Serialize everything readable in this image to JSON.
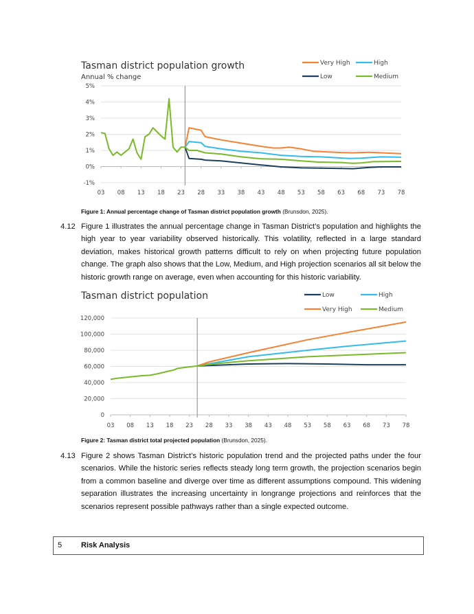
{
  "figure1": {
    "caption_bold": "Figure 1: Annual percentage change of Tasman district population growth",
    "caption_rest": " (Brunsdon, 2025)."
  },
  "figure2": {
    "caption_bold": "Figure 2: Tasman district total projected population",
    "caption_rest": " (Brunsdon, 2025)."
  },
  "paragraphs": [
    {
      "number": "4.12",
      "text": "Figure 1 illustrates the annual percentage change in Tasman District’s population and highlights the high year to year variability observed historically. This volatility, reflected in a large standard deviation, makes historical growth patterns difficult to rely on when projecting future population change. The graph also shows that the Low, Medium, and High projection scenarios all sit below the historic growth range on average, even when accounting for this historic variability."
    },
    {
      "number": "4.13",
      "text": "Figure 2 shows Tasman District’s historic population trend and the projected paths under the four scenarios. While the historic series reflects steady long term growth, the projection scenarios begin from a common baseline and diverge over time as different assumptions compound. This widening separation illustrates the increasing uncertainty in longrange projections and reinforces that the scenarios represent possible pathways rather than a single expected outcome."
    }
  ],
  "section": {
    "number": "5",
    "title": "Risk Analysis"
  },
  "colors": {
    "very_high": "#f58232",
    "high": "#33bbee",
    "medium": "#7ab929",
    "low": "#1d3f5e"
  },
  "chart_data": [
    {
      "type": "line",
      "title": "Tasman district population growth",
      "ylabel": "Annual % change",
      "xlabel": "",
      "xlim": [
        3,
        78
      ],
      "ylim": [
        -1,
        5
      ],
      "x_ticks": [
        "03",
        "08",
        "13",
        "18",
        "23",
        "28",
        "33",
        "38",
        "43",
        "48",
        "53",
        "58",
        "63",
        "68",
        "73",
        "78"
      ],
      "y_ticks": [
        "5%",
        "4%",
        "3%",
        "2%",
        "1%",
        "0%",
        "-1%"
      ],
      "y_tick_values": [
        5,
        4,
        3,
        2,
        1,
        0,
        -1
      ],
      "projection_start": 24,
      "grid": true,
      "legend": [
        "Very High",
        "High",
        "Low",
        "Medium"
      ],
      "legend_position": "top-right",
      "series": [
        {
          "name": "Very High",
          "color": "#f58232",
          "x": [
            24,
            25,
            28,
            29,
            33,
            38,
            43,
            46,
            48,
            50,
            53,
            56,
            63,
            66,
            70,
            78
          ],
          "y": [
            1.2,
            2.4,
            2.25,
            1.85,
            1.65,
            1.45,
            1.25,
            1.15,
            1.15,
            1.2,
            1.1,
            0.95,
            0.87,
            0.85,
            0.88,
            0.8
          ]
        },
        {
          "name": "High",
          "color": "#33bbee",
          "x": [
            24,
            25,
            28,
            29,
            33,
            38,
            43,
            48,
            53,
            58,
            65,
            68,
            73,
            78
          ],
          "y": [
            1.2,
            1.55,
            1.48,
            1.25,
            1.1,
            0.95,
            0.85,
            0.7,
            0.63,
            0.6,
            0.5,
            0.52,
            0.6,
            0.58
          ]
        },
        {
          "name": "Low",
          "color": "#1d3f5e",
          "x": [
            24,
            25,
            28,
            29,
            33,
            38,
            43,
            48,
            53,
            63,
            66,
            70,
            73,
            78
          ],
          "y": [
            1.2,
            0.5,
            0.45,
            0.4,
            0.35,
            0.22,
            0.1,
            -0.02,
            -0.08,
            -0.12,
            -0.13,
            -0.05,
            -0.02,
            -0.02
          ]
        },
        {
          "name": "Medium",
          "color": "#7ab929",
          "x": [
            3,
            4,
            5,
            6,
            7,
            8,
            9,
            10,
            11,
            12,
            13,
            14,
            15,
            16,
            17,
            18,
            19,
            20,
            21,
            22,
            23,
            24,
            25,
            27,
            29,
            33,
            38,
            43,
            48,
            53,
            57,
            63,
            66,
            68,
            71,
            78
          ],
          "y": [
            2.1,
            2.05,
            1.1,
            0.7,
            0.9,
            0.7,
            0.9,
            1.1,
            1.7,
            0.85,
            0.45,
            1.85,
            2.0,
            2.4,
            2.15,
            1.9,
            1.7,
            4.2,
            1.2,
            0.9,
            1.2,
            1.2,
            1.0,
            1.0,
            0.85,
            0.78,
            0.6,
            0.48,
            0.45,
            0.35,
            0.28,
            0.25,
            0.2,
            0.22,
            0.3,
            0.32
          ]
        }
      ]
    },
    {
      "type": "line",
      "title": "Tasman district population",
      "xlabel": "",
      "ylabel": "",
      "xlim": [
        3,
        78
      ],
      "ylim": [
        0,
        120000
      ],
      "x_ticks": [
        "03",
        "08",
        "13",
        "18",
        "23",
        "28",
        "33",
        "38",
        "43",
        "48",
        "53",
        "58",
        "63",
        "68",
        "73",
        "78"
      ],
      "y_ticks": [
        "120,000",
        "100,000",
        "80,000",
        "60,000",
        "40,000",
        "20,000",
        "0"
      ],
      "y_tick_values": [
        120000,
        100000,
        80000,
        60000,
        40000,
        20000,
        0
      ],
      "projection_start": 25,
      "grid": true,
      "legend": [
        "Low",
        "High",
        "Very High",
        "Medium"
      ],
      "legend_position": "top-right",
      "series": [
        {
          "name": "Low",
          "color": "#1d3f5e",
          "x": [
            25,
            30,
            38,
            48,
            58,
            68,
            78
          ],
          "y": [
            60500,
            61500,
            63000,
            63500,
            63000,
            62000,
            62000
          ]
        },
        {
          "name": "High",
          "color": "#33bbee",
          "x": [
            25,
            30,
            38,
            53,
            63,
            78
          ],
          "y": [
            60500,
            65000,
            72000,
            80000,
            85000,
            91500
          ]
        },
        {
          "name": "Very High",
          "color": "#f58232",
          "x": [
            25,
            28,
            38,
            53,
            63,
            78
          ],
          "y": [
            60500,
            65500,
            77000,
            93000,
            102000,
            115000
          ]
        },
        {
          "name": "Medium",
          "color": "#7ab929",
          "x": [
            3,
            5,
            8,
            11,
            13,
            15,
            18,
            19,
            20,
            23,
            25,
            30,
            38,
            53,
            63,
            78
          ],
          "y": [
            44000,
            45500,
            47000,
            48500,
            49000,
            51000,
            54500,
            55500,
            57500,
            59500,
            60500,
            63500,
            67000,
            72000,
            74000,
            77000
          ]
        }
      ]
    }
  ]
}
